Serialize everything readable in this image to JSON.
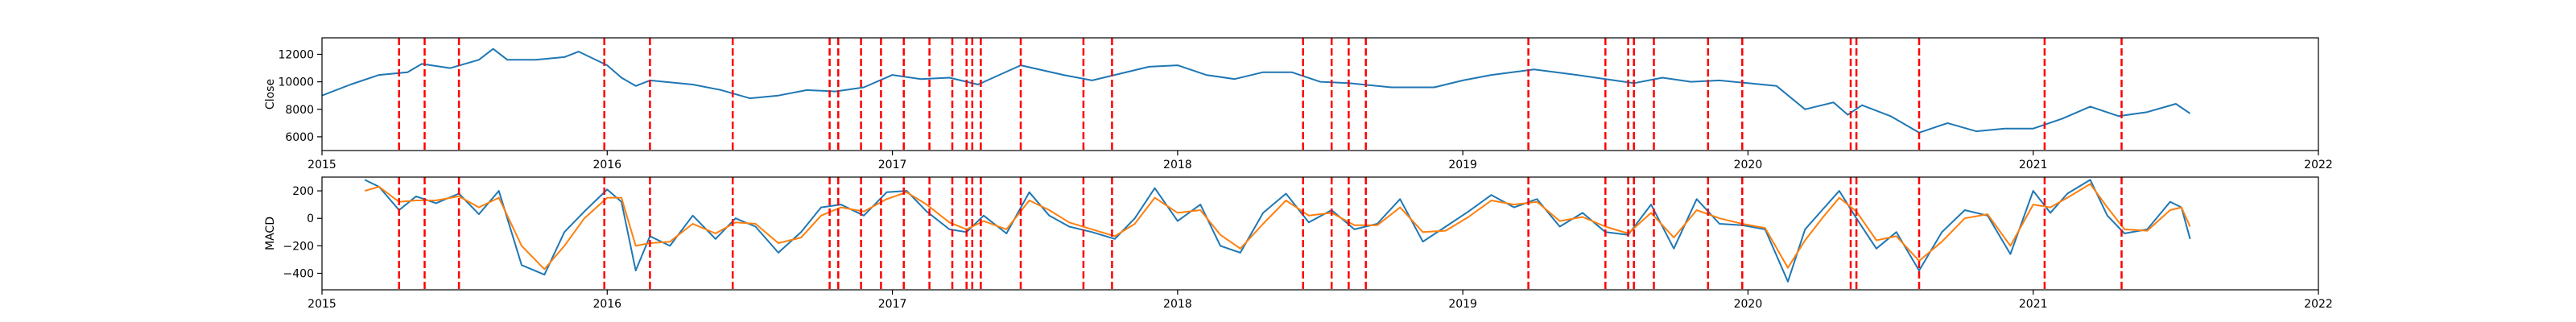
{
  "chart_data": [
    {
      "type": "line",
      "ylabel": "Close",
      "xlabel": "",
      "xlim": [
        2015.0,
        2022.0
      ],
      "ylim": [
        5000,
        13200
      ],
      "x_ticks": [
        2015,
        2016,
        2017,
        2018,
        2019,
        2020,
        2021,
        2022
      ],
      "x_tick_labels": [
        "2015",
        "2016",
        "2017",
        "2018",
        "2019",
        "2020",
        "2021",
        "2022"
      ],
      "y_ticks": [
        6000,
        8000,
        10000,
        12000
      ],
      "y_tick_labels": [
        "6000",
        "8000",
        "10000",
        "12000"
      ],
      "grid": false,
      "series": [
        {
          "color": "#1f77b4",
          "x": [
            2015.0,
            2015.1,
            2015.2,
            2015.3,
            2015.35,
            2015.45,
            2015.55,
            2015.6,
            2015.65,
            2015.75,
            2015.85,
            2015.9,
            2016.0,
            2016.05,
            2016.1,
            2016.15,
            2016.3,
            2016.4,
            2016.5,
            2016.6,
            2016.7,
            2016.8,
            2016.9,
            2017.0,
            2017.1,
            2017.2,
            2017.3,
            2017.45,
            2017.6,
            2017.7,
            2017.8,
            2017.9,
            2018.0,
            2018.1,
            2018.2,
            2018.3,
            2018.4,
            2018.5,
            2018.6,
            2018.75,
            2018.9,
            2019.0,
            2019.1,
            2019.25,
            2019.4,
            2019.5,
            2019.6,
            2019.7,
            2019.8,
            2019.9,
            2020.0,
            2020.1,
            2020.2,
            2020.3,
            2020.35,
            2020.4,
            2020.5,
            2020.6,
            2020.7,
            2020.8,
            2020.9,
            2021.0,
            2021.1,
            2021.2,
            2021.3,
            2021.4,
            2021.5,
            2021.55
          ],
          "y": [
            9000,
            9800,
            10500,
            10700,
            11300,
            11000,
            11600,
            12400,
            11600,
            11600,
            11800,
            12200,
            11200,
            10300,
            9700,
            10100,
            9800,
            9400,
            8800,
            9000,
            9400,
            9300,
            9600,
            10500,
            10200,
            10300,
            9800,
            11200,
            10500,
            10100,
            10600,
            11100,
            11200,
            10500,
            10200,
            10700,
            10700,
            10000,
            9900,
            9600,
            9600,
            10100,
            10500,
            10900,
            10500,
            10200,
            9900,
            10300,
            10000,
            10100,
            9900,
            9700,
            8000,
            8500,
            7600,
            8300,
            7500,
            6300,
            7000,
            6400,
            6600,
            6600,
            7300,
            8200,
            7500,
            7800,
            8400,
            7700
          ]
        }
      ],
      "vlines_x": [
        2015.27,
        2015.36,
        2015.48,
        2015.99,
        2016.15,
        2016.44,
        2016.78,
        2016.81,
        2016.89,
        2016.96,
        2017.04,
        2017.13,
        2017.21,
        2017.26,
        2017.28,
        2017.31,
        2017.45,
        2017.67,
        2017.77,
        2018.44,
        2018.54,
        2018.6,
        2018.66,
        2019.23,
        2019.5,
        2019.58,
        2019.6,
        2019.67,
        2019.86,
        2019.98,
        2020.36,
        2020.38,
        2020.6,
        2021.04,
        2021.31
      ],
      "vline_color": "#ff0000"
    },
    {
      "type": "line",
      "ylabel": "MACD",
      "xlabel": "",
      "xlim": [
        2015.0,
        2022.0
      ],
      "ylim": [
        -520,
        300
      ],
      "x_ticks": [
        2015,
        2016,
        2017,
        2018,
        2019,
        2020,
        2021,
        2022
      ],
      "x_tick_labels": [
        "2015",
        "2016",
        "2017",
        "2018",
        "2019",
        "2020",
        "2021",
        "2022"
      ],
      "y_ticks": [
        -400,
        -200,
        0,
        200
      ],
      "y_tick_labels": [
        "−400",
        "−200",
        "0",
        "200"
      ],
      "grid": false,
      "series": [
        {
          "color": "#1f77b4",
          "x": [
            2015.15,
            2015.2,
            2015.27,
            2015.33,
            2015.4,
            2015.48,
            2015.55,
            2015.62,
            2015.7,
            2015.78,
            2015.85,
            2015.92,
            2016.0,
            2016.05,
            2016.1,
            2016.15,
            2016.22,
            2016.3,
            2016.38,
            2016.45,
            2016.52,
            2016.6,
            2016.68,
            2016.75,
            2016.82,
            2016.9,
            2016.98,
            2017.05,
            2017.12,
            2017.2,
            2017.26,
            2017.32,
            2017.4,
            2017.48,
            2017.55,
            2017.62,
            2017.7,
            2017.78,
            2017.85,
            2017.92,
            2018.0,
            2018.08,
            2018.15,
            2018.22,
            2018.3,
            2018.38,
            2018.46,
            2018.54,
            2018.62,
            2018.7,
            2018.78,
            2018.86,
            2018.94,
            2019.02,
            2019.1,
            2019.18,
            2019.26,
            2019.34,
            2019.42,
            2019.5,
            2019.58,
            2019.66,
            2019.74,
            2019.82,
            2019.9,
            2019.98,
            2020.06,
            2020.14,
            2020.2,
            2020.26,
            2020.32,
            2020.38,
            2020.45,
            2020.52,
            2020.6,
            2020.68,
            2020.76,
            2020.84,
            2020.92,
            2021.0,
            2021.06,
            2021.12,
            2021.2,
            2021.26,
            2021.32,
            2021.4,
            2021.48,
            2021.52,
            2021.55
          ],
          "y": [
            280,
            230,
            60,
            160,
            110,
            180,
            30,
            200,
            -340,
            -410,
            -100,
            50,
            210,
            120,
            -380,
            -130,
            -200,
            20,
            -150,
            0,
            -60,
            -250,
            -100,
            80,
            100,
            20,
            190,
            200,
            50,
            -80,
            -100,
            20,
            -110,
            190,
            20,
            -60,
            -100,
            -150,
            0,
            220,
            -20,
            100,
            -200,
            -250,
            40,
            180,
            -30,
            60,
            -80,
            -40,
            140,
            -170,
            -60,
            50,
            170,
            80,
            140,
            -60,
            40,
            -100,
            -120,
            100,
            -220,
            140,
            -40,
            -50,
            -80,
            -460,
            -80,
            60,
            200,
            0,
            -220,
            -100,
            -380,
            -100,
            60,
            20,
            -260,
            200,
            40,
            180,
            280,
            20,
            -110,
            -80,
            120,
            80,
            -150
          ]
        },
        {
          "color": "#ff7f0e",
          "x": [
            2015.15,
            2015.2,
            2015.27,
            2015.33,
            2015.4,
            2015.48,
            2015.55,
            2015.62,
            2015.7,
            2015.78,
            2015.85,
            2015.92,
            2016.0,
            2016.05,
            2016.1,
            2016.15,
            2016.22,
            2016.3,
            2016.38,
            2016.45,
            2016.52,
            2016.6,
            2016.68,
            2016.75,
            2016.82,
            2016.9,
            2016.98,
            2017.05,
            2017.12,
            2017.2,
            2017.26,
            2017.32,
            2017.4,
            2017.48,
            2017.55,
            2017.62,
            2017.7,
            2017.78,
            2017.85,
            2017.92,
            2018.0,
            2018.08,
            2018.15,
            2018.22,
            2018.3,
            2018.38,
            2018.46,
            2018.54,
            2018.62,
            2018.7,
            2018.78,
            2018.86,
            2018.94,
            2019.02,
            2019.1,
            2019.18,
            2019.26,
            2019.34,
            2019.42,
            2019.5,
            2019.58,
            2019.66,
            2019.74,
            2019.82,
            2019.9,
            2019.98,
            2020.06,
            2020.14,
            2020.2,
            2020.26,
            2020.32,
            2020.38,
            2020.45,
            2020.52,
            2020.6,
            2020.68,
            2020.76,
            2020.84,
            2020.92,
            2021.0,
            2021.06,
            2021.12,
            2021.2,
            2021.26,
            2021.32,
            2021.4,
            2021.48,
            2021.52,
            2021.55
          ],
          "y": [
            200,
            230,
            120,
            130,
            130,
            160,
            80,
            150,
            -200,
            -370,
            -200,
            0,
            150,
            150,
            -200,
            -180,
            -170,
            -40,
            -110,
            -30,
            -40,
            -180,
            -140,
            20,
            80,
            50,
            140,
            190,
            100,
            -30,
            -80,
            -20,
            -80,
            130,
            60,
            -30,
            -80,
            -130,
            -40,
            150,
            40,
            60,
            -120,
            -220,
            -40,
            130,
            20,
            40,
            -50,
            -50,
            80,
            -100,
            -90,
            10,
            130,
            100,
            120,
            -20,
            10,
            -60,
            -110,
            40,
            -140,
            60,
            0,
            -40,
            -70,
            -360,
            -160,
            0,
            150,
            50,
            -160,
            -130,
            -310,
            -170,
            0,
            30,
            -200,
            100,
            80,
            150,
            250,
            80,
            -80,
            -90,
            60,
            80,
            -60
          ]
        }
      ],
      "vlines_x": [
        2015.27,
        2015.36,
        2015.48,
        2015.99,
        2016.15,
        2016.44,
        2016.78,
        2016.81,
        2016.89,
        2016.96,
        2017.04,
        2017.13,
        2017.21,
        2017.26,
        2017.28,
        2017.31,
        2017.45,
        2017.67,
        2017.77,
        2018.44,
        2018.54,
        2018.6,
        2018.66,
        2019.23,
        2019.5,
        2019.58,
        2019.6,
        2019.67,
        2019.86,
        2019.98,
        2020.36,
        2020.38,
        2020.6,
        2021.04,
        2021.31
      ],
      "vline_color": "#ff0000"
    }
  ]
}
